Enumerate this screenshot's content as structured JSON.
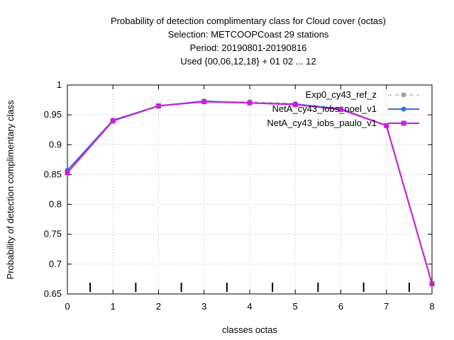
{
  "chart_data": {
    "type": "line",
    "title_lines": [
      "Probability of detection complimentary class  for Cloud cover (octas)",
      "Selection: METCOOPCoast     29 stations",
      "Period: 20190801-20190816",
      "Used {00,06,12,18} + 01 02 ... 12"
    ],
    "xlabel": "classes octas",
    "ylabel": "Probability of detection complimentary class",
    "xlim": [
      0,
      8
    ],
    "ylim": [
      0.65,
      1
    ],
    "xticks": [
      0,
      1,
      2,
      3,
      4,
      5,
      6,
      7,
      8
    ],
    "yticks": [
      0.65,
      0.7,
      0.75,
      0.8,
      0.85,
      0.9,
      0.95,
      1
    ],
    "ytick_labels": [
      "0.65",
      "0.7",
      "0.75",
      "0.8",
      "0.85",
      "0.9",
      "0.95",
      "1"
    ],
    "grid": true,
    "legend_position": "top-right",
    "class_separators": [
      0.5,
      1.5,
      2.5,
      3.5,
      4.5,
      5.5,
      6.5,
      7.5
    ],
    "x": [
      0,
      1,
      2,
      3,
      4,
      5,
      6,
      7,
      8
    ],
    "series": [
      {
        "name": "Exp0_cy43_ref_z",
        "color": "#a0a0a0",
        "dash": true,
        "marker": "circle",
        "values": [
          0.852,
          0.939,
          0.964,
          0.972,
          0.972,
          0.969,
          0.959,
          0.931,
          0.667
        ]
      },
      {
        "name": "NetA_cy43_iobs_noel_v1",
        "color": "#3a6fd8",
        "dash": false,
        "marker": "circle",
        "values": [
          0.857,
          0.941,
          0.965,
          0.973,
          0.97,
          0.968,
          0.96,
          0.932,
          0.667
        ]
      },
      {
        "name": "NetA_cy43_iobs_paulo_v1",
        "color": "#cc1fd6",
        "dash": false,
        "marker": "square",
        "values": [
          0.853,
          0.94,
          0.965,
          0.972,
          0.97,
          0.967,
          0.959,
          0.932,
          0.667
        ]
      }
    ]
  }
}
